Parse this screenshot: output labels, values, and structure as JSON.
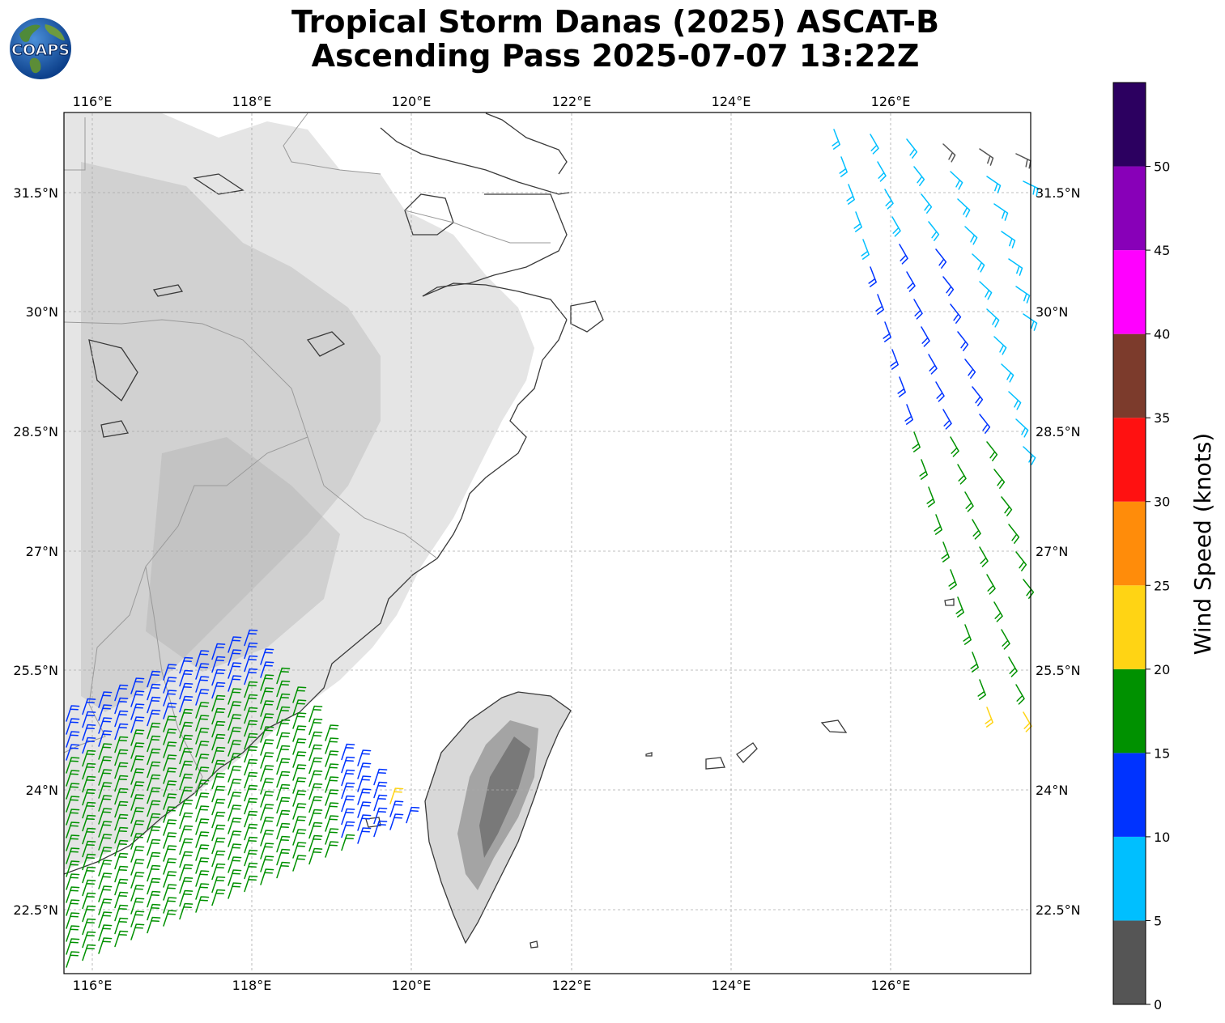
{
  "title": {
    "line1": "Tropical Storm Danas (2025) ASCAT-B",
    "line2": "Ascending Pass 2025-07-07 13:22Z"
  },
  "logo": {
    "text": "COAPS"
  },
  "map": {
    "lon_range": [
      115.65,
      127.75
    ],
    "lat_range": [
      21.7,
      32.5
    ],
    "lon_ticks": [
      "116°E",
      "118°E",
      "120°E",
      "122°E",
      "124°E",
      "126°E"
    ],
    "lat_ticks": [
      "31.5°N",
      "30°N",
      "28.5°N",
      "27°N",
      "25.5°N",
      "24°N",
      "22.5°N"
    ],
    "gridlines": true
  },
  "colorbar": {
    "label": "Wind Speed (knots)",
    "ticks": [
      "0",
      "5",
      "10",
      "15",
      "20",
      "25",
      "30",
      "35",
      "40",
      "45",
      "50"
    ],
    "bins": [
      {
        "from": 0,
        "to": 5,
        "color": "#555555"
      },
      {
        "from": 5,
        "to": 10,
        "color": "#00bfff"
      },
      {
        "from": 10,
        "to": 15,
        "color": "#0033ff"
      },
      {
        "from": 15,
        "to": 20,
        "color": "#009100"
      },
      {
        "from": 20,
        "to": 25,
        "color": "#ffd414"
      },
      {
        "from": 25,
        "to": 30,
        "color": "#ff8c0a"
      },
      {
        "from": 30,
        "to": 35,
        "color": "#ff1111"
      },
      {
        "from": 35,
        "to": 40,
        "color": "#7c3b2c"
      },
      {
        "from": 40,
        "to": 45,
        "color": "#ff00ff"
      },
      {
        "from": 45,
        "to": 50,
        "color": "#8800b8"
      },
      {
        "from": 50,
        "to": 55,
        "color": "#2c0060"
      }
    ]
  }
}
